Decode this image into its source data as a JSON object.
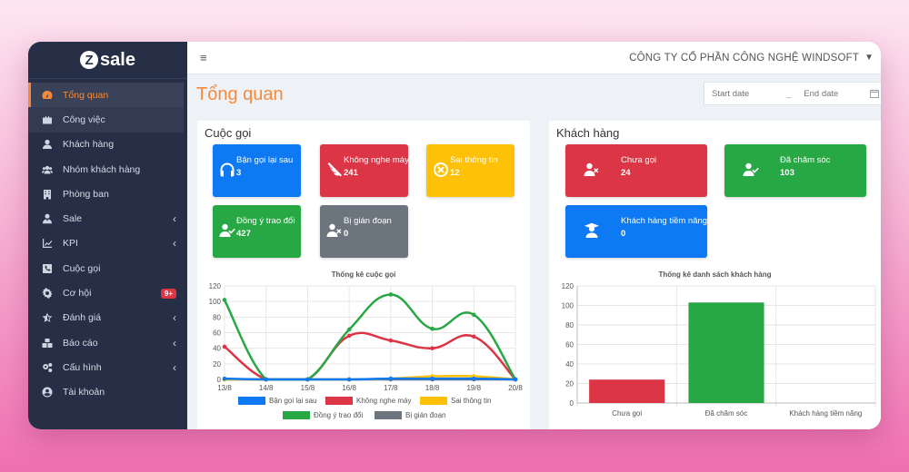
{
  "sidebar": {
    "logo": "sale",
    "items": [
      {
        "label": "Tổng quan",
        "icon": "dashboard-icon",
        "active": true
      },
      {
        "label": "Công việc",
        "icon": "briefcase-icon"
      },
      {
        "label": "Khách hàng",
        "icon": "user-icon"
      },
      {
        "label": "Nhóm khách hàng",
        "icon": "users-icon"
      },
      {
        "label": "Phòng ban",
        "icon": "building-icon"
      },
      {
        "label": "Sale",
        "icon": "user-tie-icon",
        "chevron": true
      },
      {
        "label": "KPI",
        "icon": "chart-line-icon",
        "chevron": true
      },
      {
        "label": "Cuộc gọi",
        "icon": "phone-square-icon"
      },
      {
        "label": "Cơ hội",
        "icon": "cog-icon",
        "badge": "9+"
      },
      {
        "label": "Đánh giá",
        "icon": "star-half-icon",
        "chevron": true
      },
      {
        "label": "Báo cáo",
        "icon": "boxes-icon",
        "chevron": true
      },
      {
        "label": "Cấu hình",
        "icon": "cogs-icon",
        "chevron": true
      },
      {
        "label": "Tài khoản",
        "icon": "user-circle-icon"
      }
    ]
  },
  "topbar": {
    "menu_glyph": "≡",
    "company": "CÔNG TY CỔ PHẦN CÔNG NGHỆ WINDSOFT"
  },
  "page": {
    "title": "Tổng quan",
    "start_placeholder": "Start date",
    "separator": "_",
    "end_placeholder": "End date"
  },
  "calls": {
    "title": "Cuộc gọi",
    "cards": [
      {
        "label": "Bận gọi lại sau",
        "value": "3",
        "color": "#0d79f2",
        "icon": "headphones-icon"
      },
      {
        "label": "Không nghe máy",
        "value": "241",
        "color": "#dc3545",
        "icon": "phone-slash-icon"
      },
      {
        "label": "Sai thông tin",
        "value": "12",
        "color": "#ffc107",
        "icon": "times-circle-icon"
      },
      {
        "label": "Đồng ý trao đổi",
        "value": "427",
        "color": "#28a745",
        "icon": "user-check-icon"
      },
      {
        "label": "Bị gián đoạn",
        "value": "0",
        "color": "#6c757d",
        "icon": "user-times-icon"
      }
    ]
  },
  "customers": {
    "title": "Khách hàng",
    "cards": [
      {
        "label": "Chưa gọi",
        "value": "24",
        "color": "#dc3545",
        "icon": "user-times-icon"
      },
      {
        "label": "Đã chăm sóc",
        "value": "103",
        "color": "#28a745",
        "icon": "user-check-icon"
      },
      {
        "label": "Khách hàng tiềm năng",
        "value": "0",
        "color": "#0d79f2",
        "icon": "user-graduate-icon"
      }
    ]
  },
  "chart_data": [
    {
      "type": "line",
      "title": "Thống kê cuộc gọi",
      "x": [
        "13/8",
        "14/8",
        "15/8",
        "16/8",
        "17/8",
        "18/8",
        "19/8",
        "20/8"
      ],
      "ylim": [
        0,
        120
      ],
      "yticks": [
        0,
        20,
        40,
        60,
        80,
        100,
        120
      ],
      "grid": true,
      "legend": "bottom",
      "series": [
        {
          "name": "Bận gọi lại sau",
          "color": "#0d79f2",
          "values": [
            1,
            0,
            0,
            0,
            1,
            1,
            1,
            0
          ]
        },
        {
          "name": "Không nghe máy",
          "color": "#dc3545",
          "values": [
            42,
            0,
            0,
            56,
            50,
            40,
            55,
            0
          ]
        },
        {
          "name": "Sai thông tin",
          "color": "#ffc107",
          "values": [
            0,
            0,
            0,
            0,
            1,
            4,
            4,
            0
          ]
        },
        {
          "name": "Đồng ý trao đổi",
          "color": "#28a745",
          "values": [
            102,
            0,
            0,
            64,
            109,
            65,
            83,
            0
          ]
        },
        {
          "name": "Bị gián đoạn",
          "color": "#6c757d",
          "values": [
            0,
            0,
            0,
            0,
            0,
            0,
            0,
            0
          ]
        }
      ]
    },
    {
      "type": "bar",
      "title": "Thống kê danh sách khách hàng",
      "categories": [
        "Chưa gọi",
        "Đã chăm sóc",
        "Khách hàng tiềm năng"
      ],
      "values": [
        24,
        103,
        0
      ],
      "colors": [
        "#dc3545",
        "#28a745",
        "#0d79f2"
      ],
      "ylim": [
        0,
        120
      ],
      "yticks": [
        0,
        20,
        40,
        60,
        80,
        100,
        120
      ],
      "grid": true
    }
  ]
}
